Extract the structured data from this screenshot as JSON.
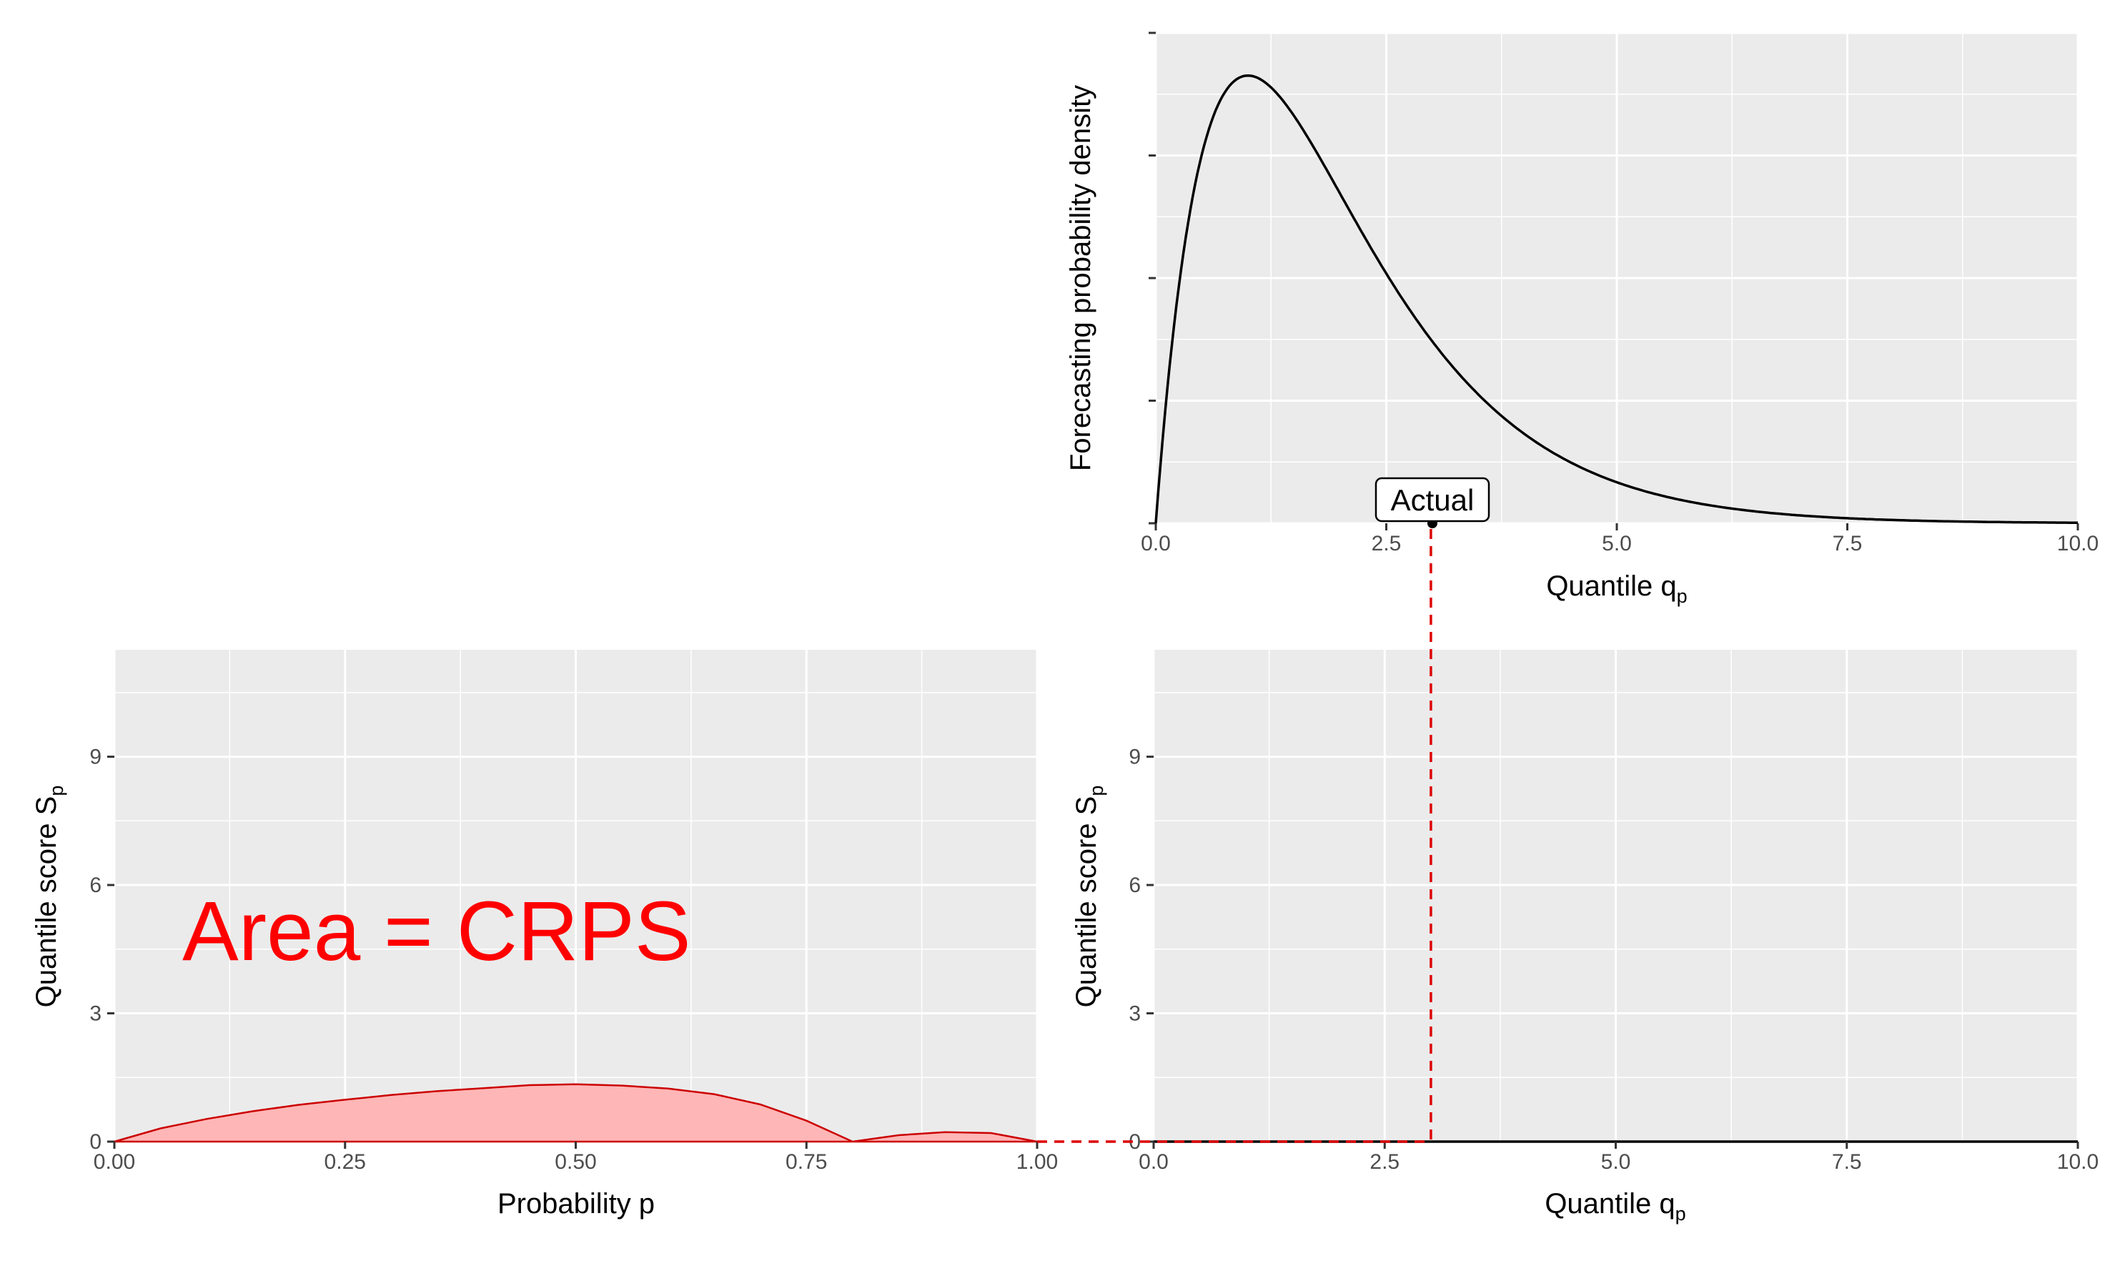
{
  "chart_data": [
    {
      "id": "density",
      "type": "line",
      "title": "",
      "xlabel": "Quantile q",
      "xlabel_sub": "p",
      "ylabel": "Forecasting probability density",
      "xlim": [
        0,
        10
      ],
      "x_ticks": [
        "0.0",
        "2.5",
        "5.0",
        "7.5",
        "10.0"
      ],
      "y_ticks_unlabeled": 5,
      "distribution": {
        "family": "gamma",
        "shape": 2,
        "scale": 1
      },
      "series": [
        {
          "x": [
            0,
            0.1,
            0.2,
            0.3,
            0.4,
            0.5,
            0.6,
            0.7,
            0.8,
            0.9,
            1.0,
            1.1,
            1.2,
            1.4,
            1.6,
            1.8,
            2.0,
            2.25,
            2.5,
            2.75,
            3.0,
            3.5,
            4.0,
            4.5,
            5.0,
            5.5,
            6.0,
            7.0,
            8.0,
            9.0,
            10.0
          ],
          "y": [
            0,
            0.0905,
            0.1637,
            0.2222,
            0.2681,
            0.3033,
            0.3293,
            0.3476,
            0.3595,
            0.3659,
            0.3679,
            0.3662,
            0.3614,
            0.3452,
            0.323,
            0.2975,
            0.2707,
            0.2371,
            0.2052,
            0.1757,
            0.1494,
            0.1057,
            0.0733,
            0.05,
            0.0337,
            0.0225,
            0.0149,
            0.0064,
            0.0027,
            0.0011,
            0.0005
          ]
        }
      ],
      "annotations": [
        {
          "label": "Actual",
          "x": 3
        }
      ]
    },
    {
      "id": "quantile-score-vs-probability",
      "type": "area",
      "title": "",
      "xlabel": "Probability p",
      "ylabel": "Quantile score S",
      "ylabel_sub": "p",
      "xlim": [
        0,
        1
      ],
      "ylim": [
        0,
        11.5
      ],
      "x_ticks": [
        "0.00",
        "0.25",
        "0.50",
        "0.75",
        "1.00"
      ],
      "y_ticks": [
        "0",
        "3",
        "6",
        "9"
      ],
      "fill_color": "#ffb6b6",
      "line_color": "#cc0000",
      "annotation_text": "Area = CRPS",
      "series": [
        {
          "x": [
            0,
            0.05,
            0.1,
            0.15,
            0.2,
            0.25,
            0.3,
            0.35,
            0.4,
            0.45,
            0.5,
            0.55,
            0.6,
            0.65,
            0.7,
            0.75,
            0.8,
            0.85,
            0.9,
            0.95,
            1.0
          ],
          "y": [
            0,
            0.31,
            0.53,
            0.71,
            0.86,
            0.98,
            1.09,
            1.18,
            1.25,
            1.32,
            1.34,
            1.31,
            1.24,
            1.11,
            0.87,
            0.49,
            0,
            0.15,
            0.22,
            0.2,
            0.0
          ]
        }
      ]
    },
    {
      "id": "quantile-score-vs-quantile",
      "type": "line",
      "title": "",
      "xlabel": "Quantile q",
      "xlabel_sub": "p",
      "ylabel": "Quantile score S",
      "ylabel_sub": "p",
      "xlim": [
        0,
        10
      ],
      "ylim": [
        0,
        11.5
      ],
      "x_ticks": [
        "0.0",
        "2.5",
        "5.0",
        "7.5",
        "10.0"
      ],
      "y_ticks": [
        "0",
        "3",
        "6",
        "9"
      ],
      "actual_x": 3,
      "dash_color": "#dd0000",
      "series": [
        {
          "x": [
            0,
            10
          ],
          "y": [
            0,
            0
          ]
        }
      ]
    }
  ]
}
